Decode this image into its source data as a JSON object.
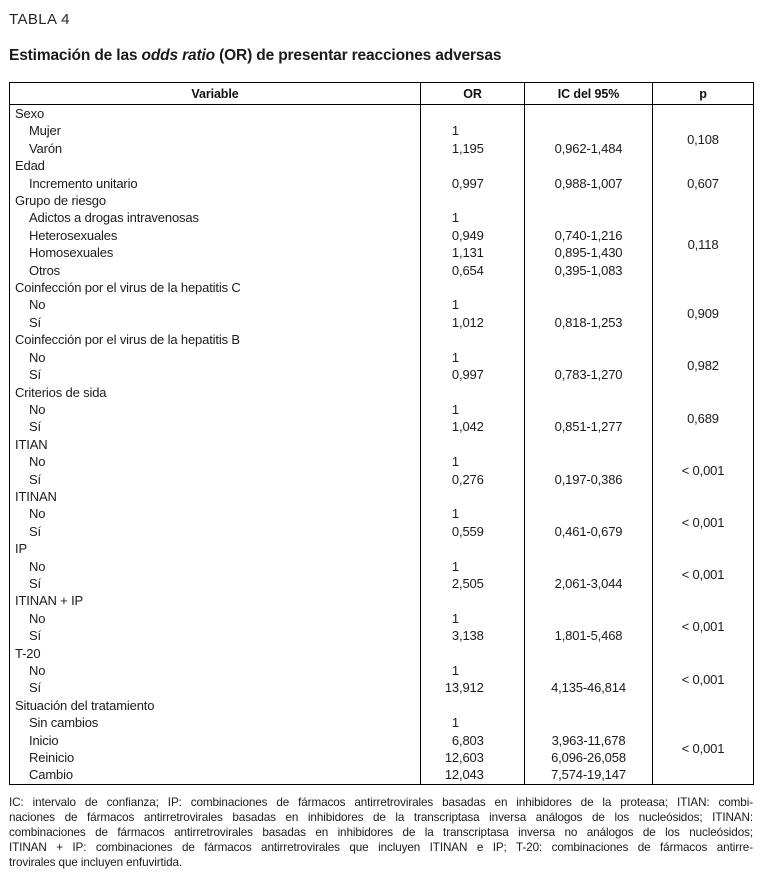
{
  "header": {
    "table_label": "TABLA 4",
    "title_prefix": "Estimación de las ",
    "title_italic": "odds ratio",
    "title_suffix": " (OR) de presentar reacciones adversas"
  },
  "table": {
    "columns": [
      "Variable",
      "OR",
      "IC del 95%",
      "p"
    ],
    "groups": [
      {
        "label": "Sexo",
        "p": "0,108",
        "rows": [
          {
            "label": "Mujer",
            "or": "1",
            "ic": ""
          },
          {
            "label": "Varón",
            "or": "1,195",
            "ic": "0,962-1,484"
          }
        ]
      },
      {
        "label": "Edad",
        "p": "0,607",
        "rows": [
          {
            "label": "Incremento unitario",
            "or": "0,997",
            "ic": "0,988-1,007"
          }
        ]
      },
      {
        "label": "Grupo de riesgo",
        "p": "0,118",
        "rows": [
          {
            "label": "Adictos a drogas intravenosas",
            "or": "1",
            "ic": ""
          },
          {
            "label": "Heterosexuales",
            "or": "0,949",
            "ic": "0,740-1,216"
          },
          {
            "label": "Homosexuales",
            "or": "1,131",
            "ic": "0,895-1,430"
          },
          {
            "label": "Otros",
            "or": "0,654",
            "ic": "0,395-1,083"
          }
        ]
      },
      {
        "label": "Coinfección por el virus de la hepatitis C",
        "p": "0,909",
        "rows": [
          {
            "label": "No",
            "or": "1",
            "ic": ""
          },
          {
            "label": "Sí",
            "or": "1,012",
            "ic": "0,818-1,253"
          }
        ]
      },
      {
        "label": "Coinfección por el virus de la hepatitis B",
        "p": "0,982",
        "rows": [
          {
            "label": "No",
            "or": "1",
            "ic": ""
          },
          {
            "label": "Sí",
            "or": "0,997",
            "ic": "0,783-1,270"
          }
        ]
      },
      {
        "label": "Criterios de sida",
        "p": "0,689",
        "rows": [
          {
            "label": "No",
            "or": "1",
            "ic": ""
          },
          {
            "label": "Sí",
            "or": "1,042",
            "ic": "0,851-1,277"
          }
        ]
      },
      {
        "label": "ITIAN",
        "p": "< 0,001",
        "rows": [
          {
            "label": "No",
            "or": "1",
            "ic": ""
          },
          {
            "label": "Sí",
            "or": "0,276",
            "ic": "0,197-0,386"
          }
        ]
      },
      {
        "label": "ITINAN",
        "p": "< 0,001",
        "rows": [
          {
            "label": "No",
            "or": "1",
            "ic": ""
          },
          {
            "label": "Sí",
            "or": "0,559",
            "ic": "0,461-0,679"
          }
        ]
      },
      {
        "label": "IP",
        "p": "< 0,001",
        "rows": [
          {
            "label": "No",
            "or": "1",
            "ic": ""
          },
          {
            "label": "Sí",
            "or": "2,505",
            "ic": "2,061-3,044"
          }
        ]
      },
      {
        "label": "ITINAN + IP",
        "p": "< 0,001",
        "rows": [
          {
            "label": "No",
            "or": "1",
            "ic": ""
          },
          {
            "label": "Sí",
            "or": "3,138",
            "ic": "1,801-5,468"
          }
        ]
      },
      {
        "label": "T-20",
        "p": "< 0,001",
        "rows": [
          {
            "label": "No",
            "or": "1",
            "ic": ""
          },
          {
            "label": "Sí",
            "or": "13,912",
            "ic": "4,135-46,814"
          }
        ]
      },
      {
        "label": "Situación del tratamiento",
        "p": "< 0,001",
        "rows": [
          {
            "label": "Sin cambios",
            "or": "1",
            "ic": ""
          },
          {
            "label": "Inicio",
            "or": "6,803",
            "ic": "3,963-11,678"
          },
          {
            "label": "Reinicio",
            "or": "12,603",
            "ic": "6,096-26,058"
          },
          {
            "label": "Cambio",
            "or": "12,043",
            "ic": "7,574-19,147"
          }
        ]
      }
    ]
  },
  "footnote_lines": [
    "IC: intervalo de confianza; IP: combinaciones de fármacos antirretrovirales basadas en inhibidores de la proteasa; ITIAN: combi-",
    "naciones de fármacos antirretrovirales basadas en inhibidores de la transcriptasa inversa análogos de los nucleósidos; ITINAN:",
    "combinaciones de fármacos antirretrovirales basadas en inhibidores de la transcriptasa inversa no análogos de los nucleósidos;",
    "ITINAN + IP: combinaciones de fármacos antirretrovirales que incluyen ITINAN e IP; T-20: combinaciones de fármacos antirre-",
    "trovirales que incluyen enfuvirtida."
  ]
}
